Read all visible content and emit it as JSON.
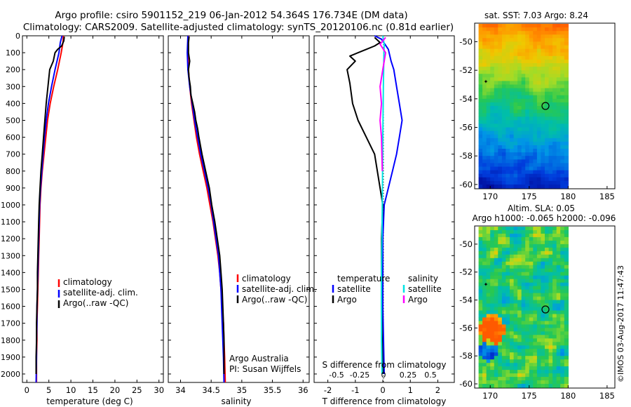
{
  "header": {
    "line1": "Argo profile: csiro 5901152_219 06-Jan-2012 54.364S 176.734E (DM data)",
    "line2": "Climatology: CARS2009. Satellite-adjusted climatology: synTS_20120106.nc (0.81d earlier)"
  },
  "colors": {
    "climatology": "#ff0000",
    "satellite": "#0000ff",
    "argo": "#000000",
    "salinity_satellite": "#00e5e5",
    "salinity_argo": "#ff00ff"
  },
  "depth_ticks": [
    "0",
    "100",
    "200",
    "300",
    "400",
    "500",
    "600",
    "700",
    "800",
    "900",
    "1000",
    "1100",
    "1200",
    "1300",
    "1400",
    "1500",
    "1600",
    "1700",
    "1800",
    "1900",
    "2000"
  ],
  "chart_data": [
    {
      "type": "line",
      "ylim": [
        0,
        2050
      ],
      "xlim": [
        -1,
        31
      ],
      "xticks": [
        0,
        5,
        10,
        15,
        20,
        25,
        30
      ],
      "xlabel": "temperature (deg C)",
      "legend": [
        "climatology",
        "satellite-adj. clim.",
        "Argo(..raw -QC)"
      ],
      "series": [
        {
          "name": "climatology",
          "color": "#ff0000",
          "points": [
            [
              8.3,
              0
            ],
            [
              8.2,
              40
            ],
            [
              7.8,
              100
            ],
            [
              7.0,
              200
            ],
            [
              6.1,
              300
            ],
            [
              5.3,
              400
            ],
            [
              4.7,
              500
            ],
            [
              4.3,
              600
            ],
            [
              3.9,
              700
            ],
            [
              3.5,
              800
            ],
            [
              3.2,
              900
            ],
            [
              3.0,
              1000
            ],
            [
              2.9,
              1100
            ],
            [
              2.8,
              1200
            ],
            [
              2.7,
              1300
            ],
            [
              2.6,
              1400
            ],
            [
              2.5,
              1500
            ],
            [
              2.4,
              1600
            ],
            [
              2.3,
              1700
            ],
            [
              2.3,
              1800
            ],
            [
              2.2,
              1900
            ],
            [
              2.2,
              2050
            ]
          ]
        },
        {
          "name": "satellite-adj. clim.",
          "color": "#0000ff",
          "points": [
            [
              8.0,
              0
            ],
            [
              7.6,
              40
            ],
            [
              7.3,
              100
            ],
            [
              6.4,
              200
            ],
            [
              5.6,
              300
            ],
            [
              4.9,
              400
            ],
            [
              4.4,
              500
            ],
            [
              4.0,
              600
            ],
            [
              3.7,
              700
            ],
            [
              3.4,
              800
            ],
            [
              3.1,
              900
            ],
            [
              2.9,
              1000
            ],
            [
              2.8,
              1100
            ],
            [
              2.7,
              1200
            ],
            [
              2.6,
              1300
            ],
            [
              2.5,
              1400
            ],
            [
              2.4,
              1500
            ],
            [
              2.3,
              1600
            ],
            [
              2.3,
              1700
            ],
            [
              2.2,
              1800
            ],
            [
              2.2,
              1900
            ],
            [
              2.1,
              2050
            ]
          ]
        },
        {
          "name": "Argo(..raw -QC)",
          "color": "#000000",
          "points": [
            [
              8.5,
              5
            ],
            [
              8.4,
              30
            ],
            [
              7.9,
              60
            ],
            [
              7.0,
              80
            ],
            [
              6.4,
              100
            ],
            [
              6.0,
              150
            ],
            [
              5.2,
              200
            ],
            [
              4.8,
              300
            ],
            [
              4.4,
              400
            ],
            [
              4.1,
              500
            ],
            [
              3.8,
              600
            ],
            [
              3.5,
              700
            ],
            [
              3.2,
              800
            ],
            [
              3.0,
              900
            ],
            [
              2.8,
              1000
            ],
            [
              2.7,
              1100
            ],
            [
              2.6,
              1200
            ],
            [
              2.5,
              1300
            ],
            [
              2.4,
              1400
            ],
            [
              2.4,
              1500
            ],
            [
              2.3,
              1600
            ],
            [
              2.2,
              1700
            ],
            [
              2.2,
              1800
            ],
            [
              2.1,
              1900
            ],
            [
              2.1,
              2000
            ]
          ]
        }
      ]
    },
    {
      "type": "line",
      "ylim": [
        0,
        2050
      ],
      "xlim": [
        33.8,
        36.1
      ],
      "xticks": [
        34,
        34.5,
        35,
        35.5,
        36
      ],
      "xticklabels": [
        "34",
        "34.5",
        "35",
        "35.5",
        "36"
      ],
      "xlabel": "salinity",
      "legend": [
        "climatology",
        "satellite-adj. clim.",
        "Argo(..raw -QC)"
      ],
      "annotation": [
        "Argo Australia",
        "PI: Susan Wijffels"
      ],
      "series": [
        {
          "name": "climatology",
          "color": "#ff0000",
          "points": [
            [
              34.13,
              0
            ],
            [
              34.12,
              100
            ],
            [
              34.13,
              200
            ],
            [
              34.15,
              300
            ],
            [
              34.18,
              400
            ],
            [
              34.22,
              500
            ],
            [
              34.26,
              600
            ],
            [
              34.31,
              700
            ],
            [
              34.37,
              800
            ],
            [
              34.43,
              900
            ],
            [
              34.48,
              1000
            ],
            [
              34.53,
              1100
            ],
            [
              34.57,
              1200
            ],
            [
              34.61,
              1300
            ],
            [
              34.64,
              1400
            ],
            [
              34.66,
              1500
            ],
            [
              34.68,
              1600
            ],
            [
              34.7,
              1700
            ],
            [
              34.71,
              1800
            ],
            [
              34.72,
              1900
            ],
            [
              34.73,
              2050
            ]
          ]
        },
        {
          "name": "satellite-adj. clim.",
          "color": "#0000ff",
          "points": [
            [
              34.12,
              0
            ],
            [
              34.11,
              100
            ],
            [
              34.12,
              200
            ],
            [
              34.15,
              300
            ],
            [
              34.19,
              400
            ],
            [
              34.23,
              500
            ],
            [
              34.28,
              600
            ],
            [
              34.33,
              700
            ],
            [
              34.39,
              800
            ],
            [
              34.45,
              900
            ],
            [
              34.5,
              1000
            ],
            [
              34.54,
              1100
            ],
            [
              34.58,
              1200
            ],
            [
              34.62,
              1300
            ],
            [
              34.64,
              1400
            ],
            [
              34.66,
              1500
            ],
            [
              34.67,
              1600
            ],
            [
              34.68,
              1700
            ],
            [
              34.69,
              1800
            ],
            [
              34.7,
              1900
            ],
            [
              34.71,
              2050
            ]
          ]
        },
        {
          "name": "Argo(..raw -QC)",
          "color": "#000000",
          "points": [
            [
              34.14,
              5
            ],
            [
              34.13,
              40
            ],
            [
              34.13,
              100
            ],
            [
              34.15,
              150
            ],
            [
              34.13,
              200
            ],
            [
              34.14,
              250
            ],
            [
              34.16,
              300
            ],
            [
              34.17,
              350
            ],
            [
              34.2,
              400
            ],
            [
              34.23,
              450
            ],
            [
              34.25,
              500
            ],
            [
              34.28,
              550
            ],
            [
              34.3,
              600
            ],
            [
              34.35,
              700
            ],
            [
              34.41,
              800
            ],
            [
              34.47,
              900
            ],
            [
              34.51,
              1000
            ],
            [
              34.56,
              1100
            ],
            [
              34.6,
              1200
            ],
            [
              34.64,
              1300
            ],
            [
              34.66,
              1400
            ],
            [
              34.68,
              1500
            ],
            [
              34.69,
              1600
            ],
            [
              34.7,
              1700
            ],
            [
              34.71,
              1800
            ],
            [
              34.71,
              1900
            ],
            [
              34.71,
              2000
            ]
          ]
        }
      ]
    },
    {
      "type": "line",
      "ylim": [
        0,
        2050
      ],
      "xlim": [
        -2.5,
        2.6
      ],
      "xticks": [
        -2,
        -1,
        0,
        1,
        2
      ],
      "xlabel": "T difference from climatology",
      "top_axis": {
        "label": "S difference from climatology",
        "ticks": [
          "-0.5",
          "-0.25",
          "0",
          "0.25",
          "0.5"
        ]
      },
      "legend_left": {
        "title": "temperature",
        "items": [
          "satellite",
          "Argo"
        ]
      },
      "legend_right": {
        "title": "salinity",
        "items": [
          "satellite",
          "Argo"
        ]
      },
      "series": [
        {
          "name": "satellite",
          "color": "#0000ff",
          "points": [
            [
              -0.3,
              0
            ],
            [
              -0.05,
              20
            ],
            [
              0.2,
              80
            ],
            [
              0.3,
              150
            ],
            [
              0.4,
              200
            ],
            [
              0.5,
              300
            ],
            [
              0.6,
              400
            ],
            [
              0.7,
              500
            ],
            [
              0.6,
              600
            ],
            [
              0.5,
              700
            ],
            [
              0.35,
              800
            ],
            [
              0.2,
              900
            ],
            [
              0.05,
              1000
            ],
            [
              0.0,
              1200
            ],
            [
              0.0,
              1600
            ],
            [
              0.05,
              2000
            ]
          ]
        },
        {
          "name": "Argo",
          "color": "#000000",
          "points": [
            [
              -0.3,
              10
            ],
            [
              -0.1,
              40
            ],
            [
              -0.3,
              60
            ],
            [
              -0.6,
              80
            ],
            [
              -1.2,
              120
            ],
            [
              -1.0,
              150
            ],
            [
              -1.3,
              200
            ],
            [
              -1.2,
              280
            ],
            [
              -1.1,
              400
            ],
            [
              -0.9,
              500
            ],
            [
              -0.6,
              600
            ],
            [
              -0.3,
              700
            ],
            [
              -0.2,
              800
            ],
            [
              -0.1,
              900
            ],
            [
              0.0,
              1000
            ],
            [
              -0.05,
              1200
            ],
            [
              -0.05,
              1600
            ],
            [
              0.0,
              2000
            ]
          ]
        },
        {
          "name": "salinity satellite",
          "color": "#00e5e5",
          "points": [
            [
              0.0,
              0
            ],
            [
              0.05,
              50
            ],
            [
              0.04,
              100
            ],
            [
              0.02,
              300
            ],
            [
              0.0,
              600
            ],
            [
              -0.02,
              1000
            ],
            [
              -0.05,
              1400
            ],
            [
              -0.05,
              1800
            ],
            [
              -0.03,
              2000
            ]
          ]
        },
        {
          "name": "salinity Argo",
          "color": "#ff00ff",
          "points": [
            [
              0.1,
              10
            ],
            [
              -0.1,
              50
            ],
            [
              0.1,
              100
            ],
            [
              0.0,
              200
            ],
            [
              -0.1,
              300
            ],
            [
              -0.05,
              400
            ],
            [
              -0.1,
              500
            ],
            [
              -0.05,
              600
            ],
            [
              -0.02,
              800
            ]
          ]
        }
      ]
    },
    {
      "type": "heatmap",
      "title": "sat. SST: 7.03 Argo: 8.24",
      "xlim": [
        168,
        186
      ],
      "ylim": [
        -60.3,
        -48.7
      ],
      "xticks": [
        "170",
        "175",
        "180",
        "185"
      ],
      "yticks": [
        "-50",
        "-52",
        "-54",
        "-56",
        "-58",
        "-60"
      ],
      "data_x_extent": [
        168.5,
        180
      ],
      "profile_location": [
        176.734,
        -54.364
      ]
    },
    {
      "type": "heatmap",
      "title": "Altim. SLA: 0.05",
      "subtitle": "Argo h1000: -0.065 h2000: -0.096",
      "xlim": [
        168,
        186
      ],
      "ylim": [
        -60.3,
        -48.7
      ],
      "xticks": [
        "170",
        "175",
        "180",
        "185"
      ],
      "yticks": [
        "-50",
        "-52",
        "-54",
        "-56",
        "-58",
        "-60"
      ],
      "data_x_extent": [
        168.5,
        180
      ],
      "profile_location": [
        176.734,
        -54.364
      ]
    }
  ],
  "stamp": "©IMOS 03-Aug-2017 11:47:43"
}
